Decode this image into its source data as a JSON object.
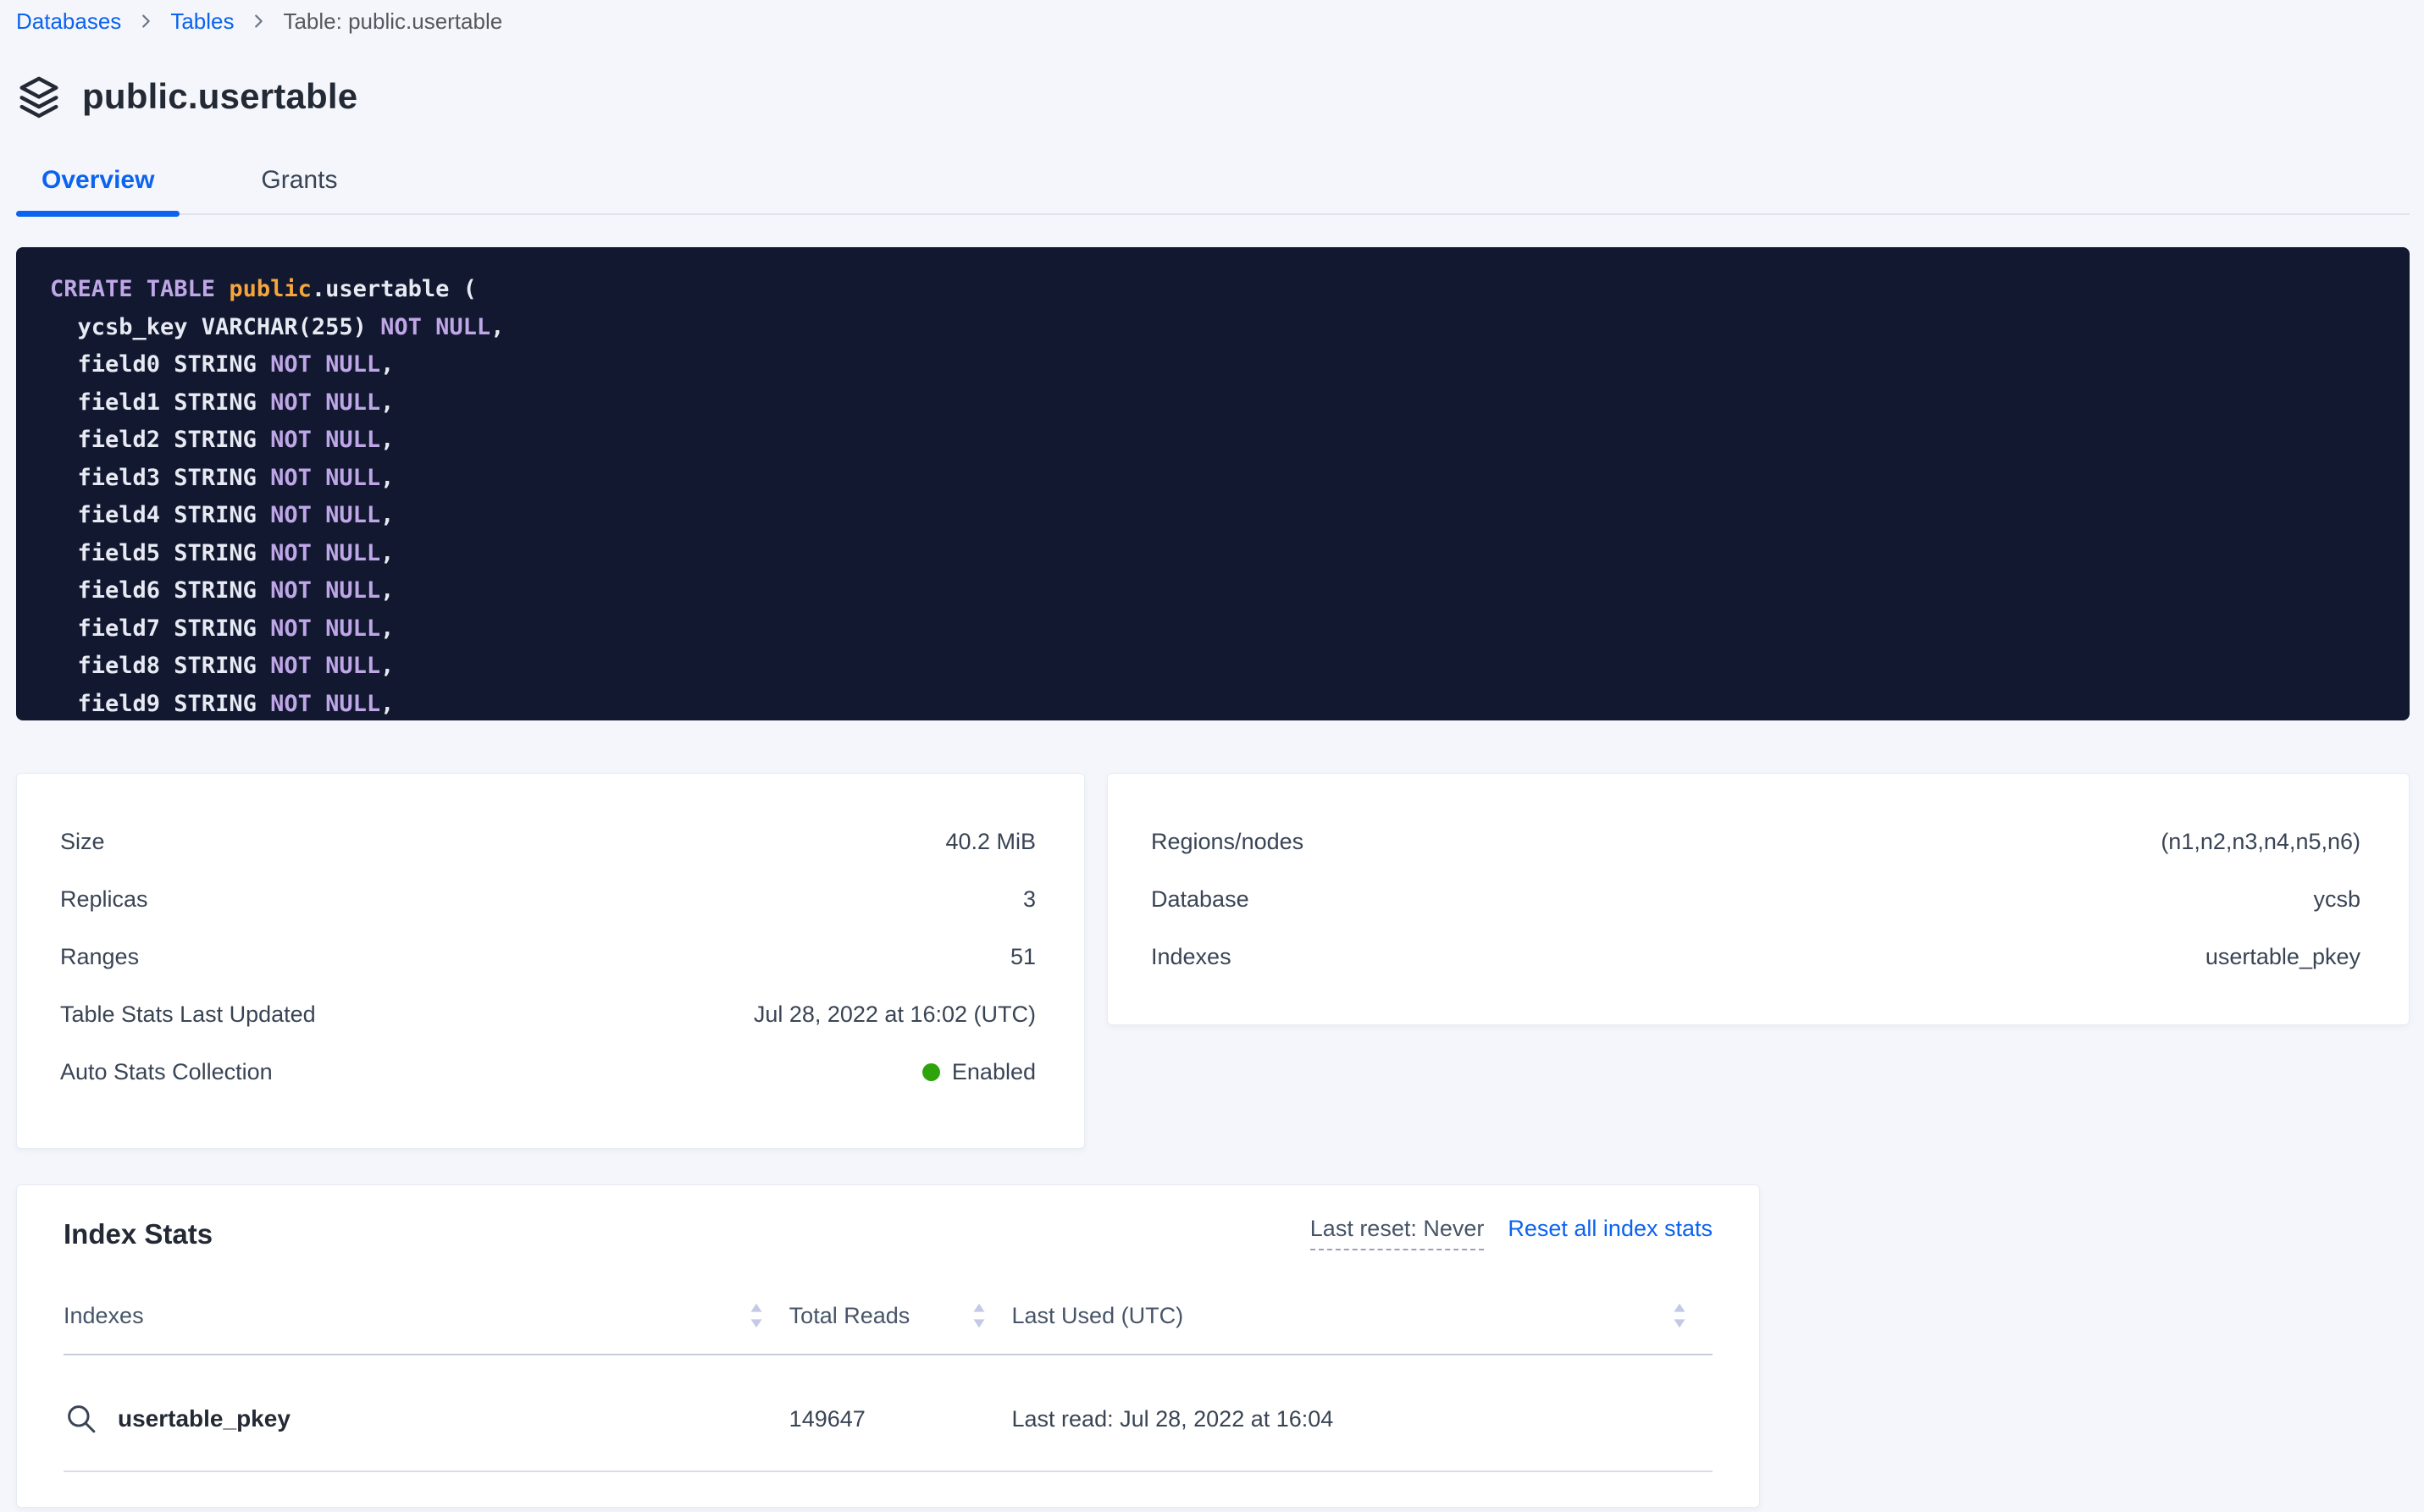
{
  "breadcrumb": {
    "items": [
      {
        "label": "Databases"
      },
      {
        "label": "Tables"
      },
      {
        "label": "Table: public.usertable"
      }
    ]
  },
  "page": {
    "title": "public.usertable"
  },
  "tabs": [
    {
      "label": "Overview",
      "active": true
    },
    {
      "label": "Grants",
      "active": false
    }
  ],
  "sql": {
    "lines": [
      [
        {
          "t": "CREATE TABLE ",
          "c": "kw"
        },
        {
          "t": "public",
          "c": "schema"
        },
        {
          "t": ".usertable (",
          "c": "plain"
        }
      ],
      [
        {
          "t": "  ycsb_key VARCHAR(255) ",
          "c": "plain"
        },
        {
          "t": "NOT NULL",
          "c": "kw"
        },
        {
          "t": ",",
          "c": "plain"
        }
      ],
      [
        {
          "t": "  field0 STRING ",
          "c": "plain"
        },
        {
          "t": "NOT NULL",
          "c": "kw"
        },
        {
          "t": ",",
          "c": "plain"
        }
      ],
      [
        {
          "t": "  field1 STRING ",
          "c": "plain"
        },
        {
          "t": "NOT NULL",
          "c": "kw"
        },
        {
          "t": ",",
          "c": "plain"
        }
      ],
      [
        {
          "t": "  field2 STRING ",
          "c": "plain"
        },
        {
          "t": "NOT NULL",
          "c": "kw"
        },
        {
          "t": ",",
          "c": "plain"
        }
      ],
      [
        {
          "t": "  field3 STRING ",
          "c": "plain"
        },
        {
          "t": "NOT NULL",
          "c": "kw"
        },
        {
          "t": ",",
          "c": "plain"
        }
      ],
      [
        {
          "t": "  field4 STRING ",
          "c": "plain"
        },
        {
          "t": "NOT NULL",
          "c": "kw"
        },
        {
          "t": ",",
          "c": "plain"
        }
      ],
      [
        {
          "t": "  field5 STRING ",
          "c": "plain"
        },
        {
          "t": "NOT NULL",
          "c": "kw"
        },
        {
          "t": ",",
          "c": "plain"
        }
      ],
      [
        {
          "t": "  field6 STRING ",
          "c": "plain"
        },
        {
          "t": "NOT NULL",
          "c": "kw"
        },
        {
          "t": ",",
          "c": "plain"
        }
      ],
      [
        {
          "t": "  field7 STRING ",
          "c": "plain"
        },
        {
          "t": "NOT NULL",
          "c": "kw"
        },
        {
          "t": ",",
          "c": "plain"
        }
      ],
      [
        {
          "t": "  field8 STRING ",
          "c": "plain"
        },
        {
          "t": "NOT NULL",
          "c": "kw"
        },
        {
          "t": ",",
          "c": "plain"
        }
      ],
      [
        {
          "t": "  field9 STRING ",
          "c": "plain"
        },
        {
          "t": "NOT NULL",
          "c": "kw"
        },
        {
          "t": ",",
          "c": "plain"
        }
      ]
    ]
  },
  "summary_left": {
    "rows": [
      {
        "label": "Size",
        "value": "40.2 MiB"
      },
      {
        "label": "Replicas",
        "value": "3"
      },
      {
        "label": "Ranges",
        "value": "51"
      },
      {
        "label": "Table Stats Last Updated",
        "value": "Jul 28, 2022 at 16:02 (UTC)"
      },
      {
        "label": "Auto Stats Collection",
        "value": "Enabled",
        "status_color": "#2fa30c"
      }
    ]
  },
  "summary_right": {
    "rows": [
      {
        "label": "Regions/nodes",
        "value": "(n1,n2,n3,n4,n5,n6)"
      },
      {
        "label": "Database",
        "value": "ycsb"
      },
      {
        "label": "Indexes",
        "value": "usertable_pkey"
      }
    ]
  },
  "index_stats": {
    "title": "Index Stats",
    "last_reset": "Last reset: Never",
    "reset_link": "Reset all index stats",
    "columns": [
      "Indexes",
      "Total Reads",
      "Last Used (UTC)"
    ],
    "rows": [
      {
        "name": "usertable_pkey",
        "total_reads": "149647",
        "last_used": "Last read: Jul 28, 2022 at 16:04"
      }
    ]
  },
  "colors": {
    "accent_blue": "#0b63f0",
    "status_green": "#2fa30c",
    "code_background": "#111830",
    "code_keyword": "#bfa6e6",
    "code_schema": "#f4a63d",
    "page_background": "#f4f6fb"
  }
}
